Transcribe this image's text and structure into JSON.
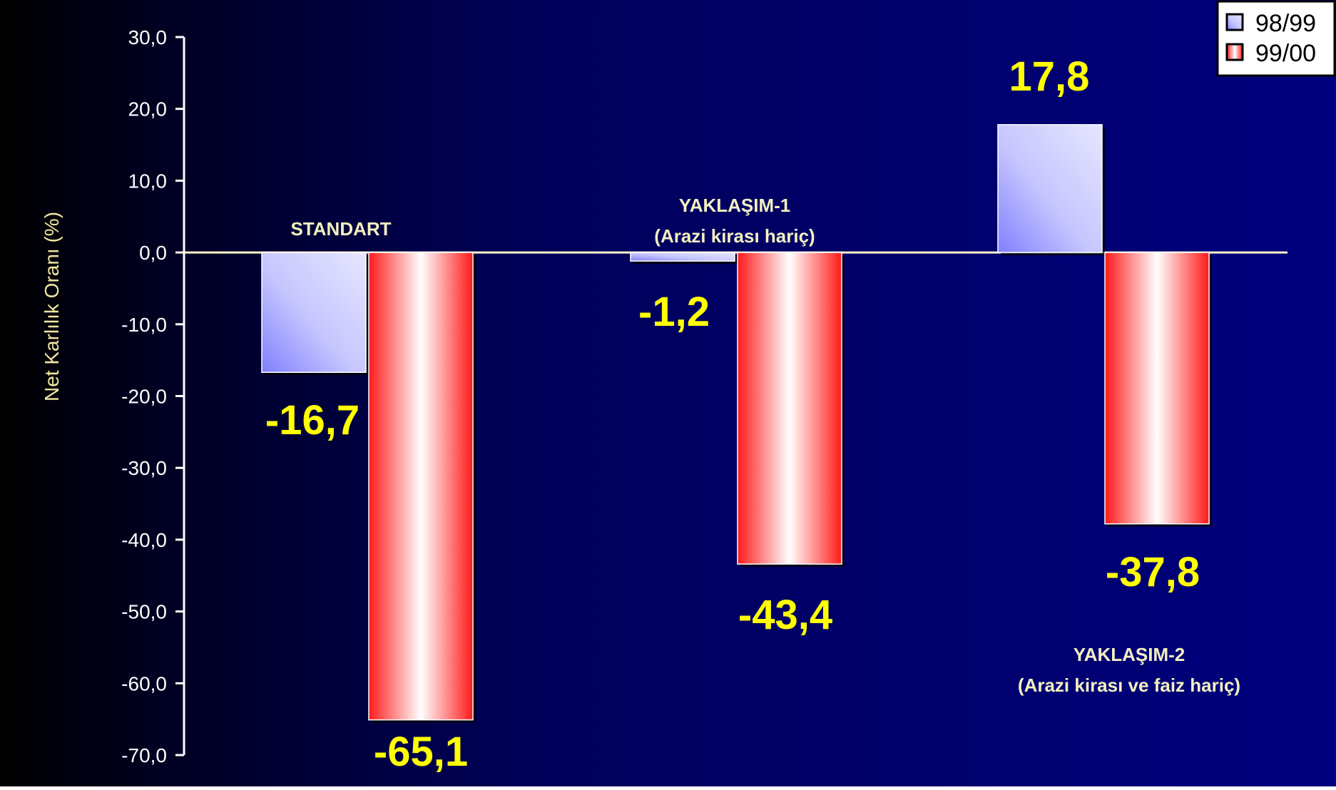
{
  "chart_data": {
    "type": "bar",
    "ylabel": "Net Karlılık Oranı (%)",
    "ylim": [
      -70,
      30
    ],
    "yticks": [
      "30,0",
      "20,0",
      "10,0",
      "0,0",
      "-10,0",
      "-20,0",
      "-30,0",
      "-40,0",
      "-50,0",
      "-60,0",
      "-70,0"
    ],
    "categories": [
      "STANDART",
      "YAKLAŞIM-1",
      "YAKLAŞIM-2"
    ],
    "category_labels": [
      [
        "STANDART"
      ],
      [
        "YAKLAŞIM-1",
        "(Arazi kirası hariç)"
      ],
      [
        "YAKLAŞIM-2",
        "(Arazi kirası ve faiz hariç)"
      ]
    ],
    "series": [
      {
        "name": "98/99",
        "values": [
          -16.7,
          -1.2,
          17.8
        ],
        "labels": [
          "-16,7",
          "-1,2",
          "17,8"
        ]
      },
      {
        "name": "99/00",
        "values": [
          -65.1,
          -43.4,
          -37.8
        ],
        "labels": [
          "-65,1",
          "-43,4",
          "-37,8"
        ]
      }
    ],
    "legend_position": "top-right",
    "colors": {
      "background_dark": "#000000",
      "background_blue": "#00007a",
      "series1": "#a8a8ff",
      "series2": "#ff2a2a",
      "axis_text": "#ffffff",
      "ylabel_text": "#f2e6a0",
      "value_labels": "#ffff00",
      "category_labels": "#f3f0c0",
      "zero_line": "#fff6c8"
    }
  }
}
